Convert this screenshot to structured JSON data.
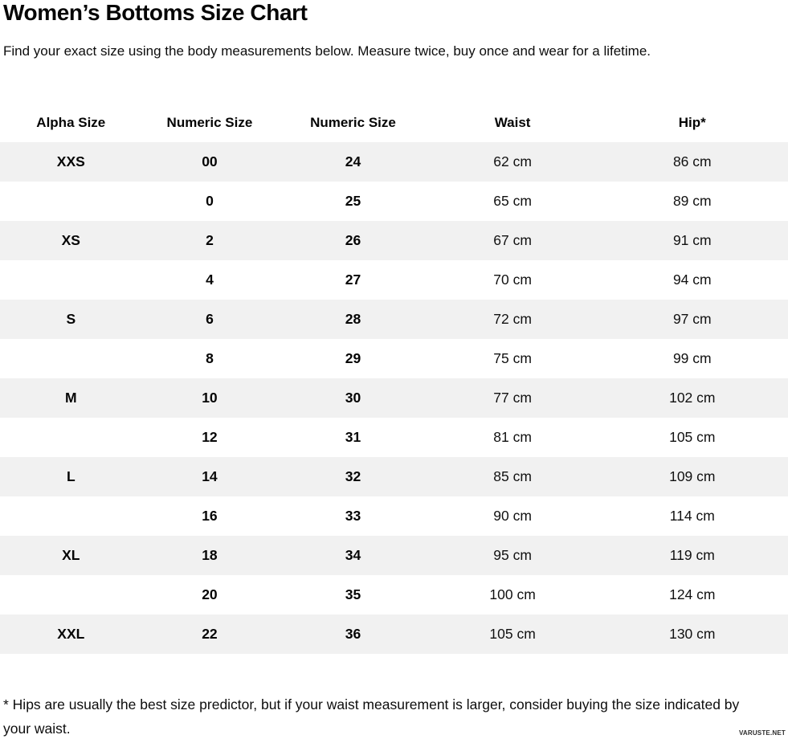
{
  "page": {
    "title": "Women’s Bottoms Size Chart",
    "subtitle": "Find your exact size using the body measurements below. Measure twice, buy once and wear for a lifetime.",
    "footnote": "* Hips are usually the best size predictor, but if your waist measurement is larger, consider buying the size indicated by your waist.",
    "watermark": "VARUSTE.NET"
  },
  "chart_data": {
    "type": "table",
    "title": "Women’s Bottoms Size Chart",
    "columns": [
      "Alpha Size",
      "Numeric Size",
      "Numeric Size",
      "Waist",
      "Hip*"
    ],
    "rows": [
      [
        "XXS",
        "00",
        "24",
        "62 cm",
        "86 cm"
      ],
      [
        "",
        "0",
        "25",
        "65 cm",
        "89 cm"
      ],
      [
        "XS",
        "2",
        "26",
        "67 cm",
        "91 cm"
      ],
      [
        "",
        "4",
        "27",
        "70 cm",
        "94 cm"
      ],
      [
        "S",
        "6",
        "28",
        "72 cm",
        "97 cm"
      ],
      [
        "",
        "8",
        "29",
        "75 cm",
        "99 cm"
      ],
      [
        "M",
        "10",
        "30",
        "77 cm",
        "102 cm"
      ],
      [
        "",
        "12",
        "31",
        "81 cm",
        "105 cm"
      ],
      [
        "L",
        "14",
        "32",
        "85 cm",
        "109 cm"
      ],
      [
        "",
        "16",
        "33",
        "90 cm",
        "114 cm"
      ],
      [
        "XL",
        "18",
        "34",
        "95 cm",
        "119 cm"
      ],
      [
        "",
        "20",
        "35",
        "100 cm",
        "124 cm"
      ],
      [
        "XXL",
        "22",
        "36",
        "105 cm",
        "130 cm"
      ]
    ],
    "layout": {
      "striped_rows": "odd rows shaded",
      "stripe_color": "#f1f1f1",
      "alignment": "center"
    }
  },
  "colors": {
    "background": "#ffffff",
    "stripe": "#f1f1f1",
    "text": "#0d0d0d"
  }
}
